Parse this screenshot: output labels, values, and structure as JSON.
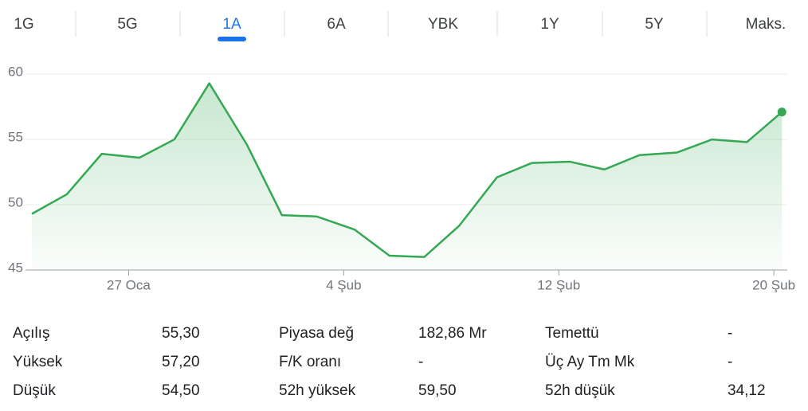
{
  "tabs": [
    "1G",
    "5G",
    "1A",
    "6A",
    "YBK",
    "1Y",
    "5Y",
    "Maks."
  ],
  "selected_tab": 2,
  "chart_data": {
    "type": "line",
    "color": "#34a853",
    "x": [
      -3.6,
      -2.3,
      -1.0,
      0.4,
      1.7,
      3.0,
      4.4,
      5.7,
      7.0,
      8.4,
      9.7,
      11.0,
      12.3,
      13.7,
      15.0,
      16.4,
      17.7,
      19.0,
      20.4,
      21.7,
      23.0,
      24.3
    ],
    "values": [
      49.3,
      50.8,
      53.9,
      53.6,
      55.0,
      59.3,
      54.6,
      49.2,
      49.1,
      48.1,
      46.1,
      46.0,
      48.4,
      52.1,
      53.2,
      53.3,
      52.7,
      53.8,
      54.0,
      55.0,
      54.8,
      57.1
    ],
    "xlim": [
      -3.6,
      24.5
    ],
    "ylim": [
      45,
      60.8
    ],
    "xticks": [
      {
        "value": 0,
        "label": "27 Oca"
      },
      {
        "value": 8,
        "label": "4 Şub"
      },
      {
        "value": 16,
        "label": "12 Şub"
      },
      {
        "value": 24,
        "label": "20 Şub"
      }
    ],
    "yticks": [
      45,
      50,
      55,
      60
    ],
    "grid": true
  },
  "stats": [
    [
      [
        "Açılış",
        "55,30"
      ],
      [
        "Yüksek",
        "57,20"
      ],
      [
        "Düşük",
        "54,50"
      ]
    ],
    [
      [
        "Piyasa değ",
        "182,86 Mr"
      ],
      [
        "F/K oranı",
        "-"
      ],
      [
        "52h yüksek",
        "59,50"
      ]
    ],
    [
      [
        "Temettü",
        "-"
      ],
      [
        "Üç Ay Tm Mk",
        "-"
      ],
      [
        "52h düşük",
        "34,12"
      ]
    ]
  ]
}
